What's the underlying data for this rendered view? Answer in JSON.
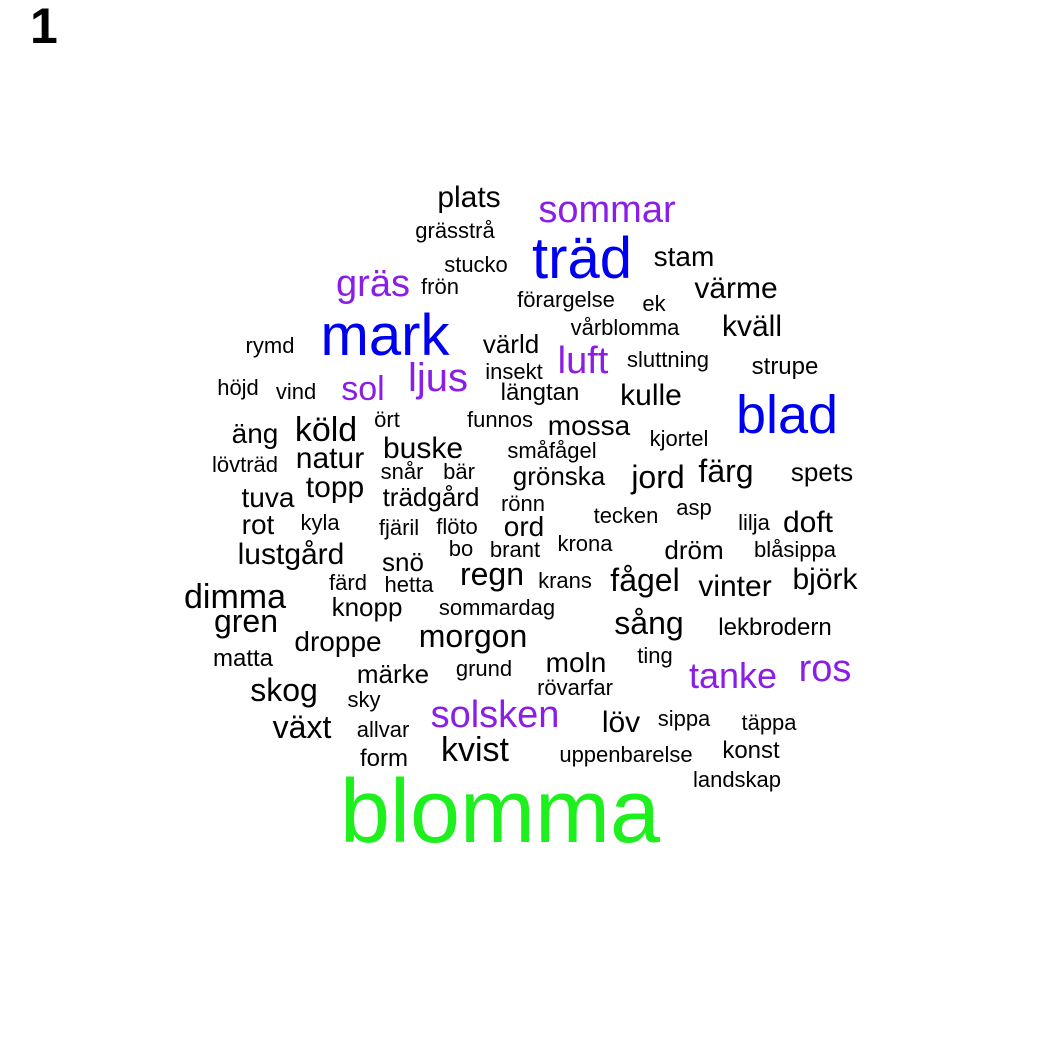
{
  "panel_label": "1",
  "colors": {
    "black": "#000000",
    "purple": "#8b1ee6",
    "blue": "#0000f0",
    "green": "#1ef01e"
  },
  "words": [
    {
      "text": "blomma",
      "color": "green",
      "weight": 6
    },
    {
      "text": "mark",
      "color": "blue",
      "weight": 5
    },
    {
      "text": "träd",
      "color": "blue",
      "weight": 5
    },
    {
      "text": "blad",
      "color": "blue",
      "weight": 5
    },
    {
      "text": "sommar",
      "color": "purple",
      "weight": 4
    },
    {
      "text": "gräs",
      "color": "purple",
      "weight": 4
    },
    {
      "text": "ljus",
      "color": "purple",
      "weight": 4
    },
    {
      "text": "sol",
      "color": "purple",
      "weight": 4
    },
    {
      "text": "luft",
      "color": "purple",
      "weight": 4
    },
    {
      "text": "tanke",
      "color": "purple",
      "weight": 4
    },
    {
      "text": "ros",
      "color": "purple",
      "weight": 4
    },
    {
      "text": "solsken",
      "color": "purple",
      "weight": 4
    },
    {
      "text": "plats",
      "color": "black",
      "weight": 3
    },
    {
      "text": "grässtrå",
      "color": "black",
      "weight": 1
    },
    {
      "text": "stucko",
      "color": "black",
      "weight": 1
    },
    {
      "text": "frön",
      "color": "black",
      "weight": 1
    },
    {
      "text": "stam",
      "color": "black",
      "weight": 2
    },
    {
      "text": "värme",
      "color": "black",
      "weight": 3
    },
    {
      "text": "förargelse",
      "color": "black",
      "weight": 1
    },
    {
      "text": "ek",
      "color": "black",
      "weight": 1
    },
    {
      "text": "vårblomma",
      "color": "black",
      "weight": 1
    },
    {
      "text": "kväll",
      "color": "black",
      "weight": 3
    },
    {
      "text": "rymd",
      "color": "black",
      "weight": 1
    },
    {
      "text": "värld",
      "color": "black",
      "weight": 2
    },
    {
      "text": "sluttning",
      "color": "black",
      "weight": 1
    },
    {
      "text": "strupe",
      "color": "black",
      "weight": 1
    },
    {
      "text": "insekt",
      "color": "black",
      "weight": 1
    },
    {
      "text": "höjd",
      "color": "black",
      "weight": 1
    },
    {
      "text": "vind",
      "color": "black",
      "weight": 1
    },
    {
      "text": "längtan",
      "color": "black",
      "weight": 2
    },
    {
      "text": "kulle",
      "color": "black",
      "weight": 3
    },
    {
      "text": "ört",
      "color": "black",
      "weight": 1
    },
    {
      "text": "funnos",
      "color": "black",
      "weight": 1
    },
    {
      "text": "mossa",
      "color": "black",
      "weight": 2
    },
    {
      "text": "äng",
      "color": "black",
      "weight": 2
    },
    {
      "text": "köld",
      "color": "black",
      "weight": 3
    },
    {
      "text": "buske",
      "color": "black",
      "weight": 3
    },
    {
      "text": "småfågel",
      "color": "black",
      "weight": 1
    },
    {
      "text": "kjortel",
      "color": "black",
      "weight": 1
    },
    {
      "text": "lövträd",
      "color": "black",
      "weight": 1
    },
    {
      "text": "natur",
      "color": "black",
      "weight": 3
    },
    {
      "text": "snår",
      "color": "black",
      "weight": 1
    },
    {
      "text": "bär",
      "color": "black",
      "weight": 1
    },
    {
      "text": "grönska",
      "color": "black",
      "weight": 2
    },
    {
      "text": "jord",
      "color": "black",
      "weight": 3
    },
    {
      "text": "färg",
      "color": "black",
      "weight": 3
    },
    {
      "text": "spets",
      "color": "black",
      "weight": 2
    },
    {
      "text": "tuva",
      "color": "black",
      "weight": 2
    },
    {
      "text": "topp",
      "color": "black",
      "weight": 3
    },
    {
      "text": "trädgård",
      "color": "black",
      "weight": 2
    },
    {
      "text": "rönn",
      "color": "black",
      "weight": 1
    },
    {
      "text": "tecken",
      "color": "black",
      "weight": 1
    },
    {
      "text": "asp",
      "color": "black",
      "weight": 1
    },
    {
      "text": "rot",
      "color": "black",
      "weight": 2
    },
    {
      "text": "kyla",
      "color": "black",
      "weight": 1
    },
    {
      "text": "fjäril",
      "color": "black",
      "weight": 1
    },
    {
      "text": "flöto",
      "color": "black",
      "weight": 1
    },
    {
      "text": "ord",
      "color": "black",
      "weight": 2
    },
    {
      "text": "lilja",
      "color": "black",
      "weight": 1
    },
    {
      "text": "doft",
      "color": "black",
      "weight": 3
    },
    {
      "text": "lustgård",
      "color": "black",
      "weight": 3
    },
    {
      "text": "bo",
      "color": "black",
      "weight": 1
    },
    {
      "text": "brant",
      "color": "black",
      "weight": 1
    },
    {
      "text": "krona",
      "color": "black",
      "weight": 1
    },
    {
      "text": "dröm",
      "color": "black",
      "weight": 2
    },
    {
      "text": "blåsippa",
      "color": "black",
      "weight": 1
    },
    {
      "text": "snö",
      "color": "black",
      "weight": 2
    },
    {
      "text": "regn",
      "color": "black",
      "weight": 3
    },
    {
      "text": "färd",
      "color": "black",
      "weight": 1
    },
    {
      "text": "hetta",
      "color": "black",
      "weight": 1
    },
    {
      "text": "krans",
      "color": "black",
      "weight": 1
    },
    {
      "text": "fågel",
      "color": "black",
      "weight": 3
    },
    {
      "text": "vinter",
      "color": "black",
      "weight": 3
    },
    {
      "text": "björk",
      "color": "black",
      "weight": 3
    },
    {
      "text": "dimma",
      "color": "black",
      "weight": 3
    },
    {
      "text": "knopp",
      "color": "black",
      "weight": 2
    },
    {
      "text": "sommardag",
      "color": "black",
      "weight": 1
    },
    {
      "text": "gren",
      "color": "black",
      "weight": 3
    },
    {
      "text": "sång",
      "color": "black",
      "weight": 3
    },
    {
      "text": "lekbrodern",
      "color": "black",
      "weight": 1
    },
    {
      "text": "droppe",
      "color": "black",
      "weight": 2
    },
    {
      "text": "morgon",
      "color": "black",
      "weight": 3
    },
    {
      "text": "matta",
      "color": "black",
      "weight": 1
    },
    {
      "text": "ting",
      "color": "black",
      "weight": 1
    },
    {
      "text": "märke",
      "color": "black",
      "weight": 2
    },
    {
      "text": "grund",
      "color": "black",
      "weight": 1
    },
    {
      "text": "moln",
      "color": "black",
      "weight": 2
    },
    {
      "text": "skog",
      "color": "black",
      "weight": 3
    },
    {
      "text": "rövarfar",
      "color": "black",
      "weight": 1
    },
    {
      "text": "sky",
      "color": "black",
      "weight": 1
    },
    {
      "text": "växt",
      "color": "black",
      "weight": 3
    },
    {
      "text": "allvar",
      "color": "black",
      "weight": 1
    },
    {
      "text": "löv",
      "color": "black",
      "weight": 3
    },
    {
      "text": "sippa",
      "color": "black",
      "weight": 1
    },
    {
      "text": "täppa",
      "color": "black",
      "weight": 1
    },
    {
      "text": "form",
      "color": "black",
      "weight": 1
    },
    {
      "text": "kvist",
      "color": "black",
      "weight": 3
    },
    {
      "text": "uppenbarelse",
      "color": "black",
      "weight": 1
    },
    {
      "text": "konst",
      "color": "black",
      "weight": 1
    },
    {
      "text": "landskap",
      "color": "black",
      "weight": 1
    }
  ]
}
